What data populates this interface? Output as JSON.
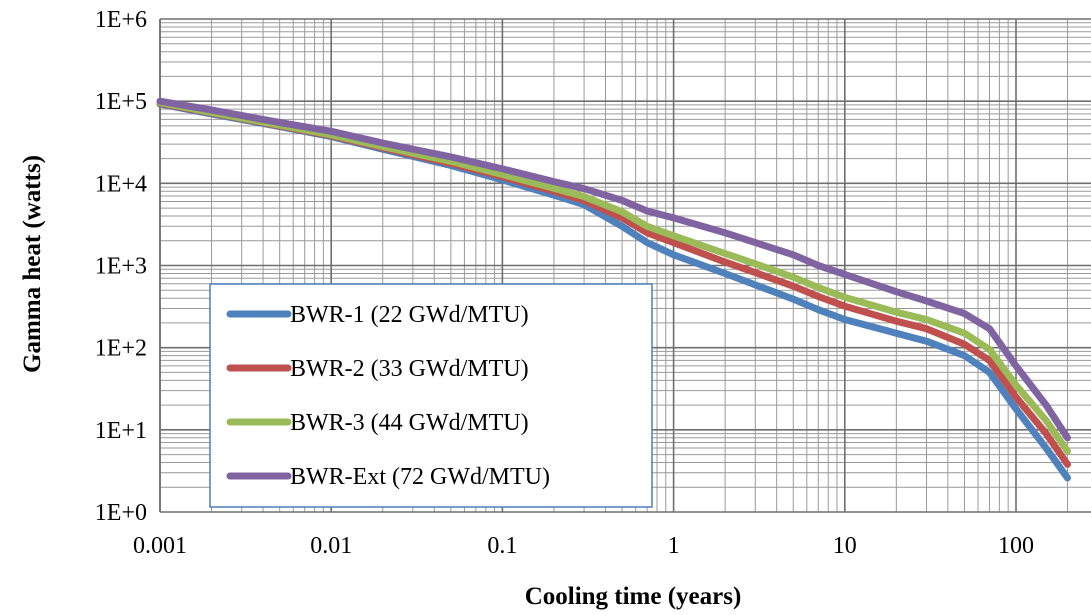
{
  "chart_data": {
    "type": "line",
    "title": "",
    "xlabel": "Cooling time (years)",
    "ylabel": "Gamma heat (watts)",
    "xscale": "log",
    "yscale": "log",
    "xlim": [
      0.001,
      200
    ],
    "ylim": [
      1,
      1000000
    ],
    "x_ticks": [
      "0.001",
      "0.01",
      "0.1",
      "1",
      "10",
      "100"
    ],
    "y_ticks": [
      "1E+0",
      "1E+1",
      "1E+2",
      "1E+3",
      "1E+4",
      "1E+5",
      "1E+6"
    ],
    "grid": true,
    "minor_grid": true,
    "legend_position": "lower-left",
    "series": [
      {
        "name": "BWR-1 (22 GWd/MTU)",
        "color": "#4F81BD",
        "x": [
          0.001,
          0.002,
          0.005,
          0.01,
          0.02,
          0.05,
          0.1,
          0.2,
          0.3,
          0.5,
          0.7,
          1,
          2,
          3,
          5,
          7,
          10,
          20,
          30,
          50,
          70,
          100,
          150,
          200
        ],
        "y": [
          92000,
          70000,
          49000,
          37000,
          26000,
          16500,
          11000,
          7200,
          5500,
          3000,
          1900,
          1350,
          800,
          580,
          390,
          290,
          220,
          150,
          120,
          80,
          50,
          18,
          6,
          2.6
        ]
      },
      {
        "name": "BWR-2 (33 GWd/MTU)",
        "color": "#C0504D",
        "x": [
          0.001,
          0.002,
          0.005,
          0.01,
          0.02,
          0.05,
          0.1,
          0.2,
          0.3,
          0.5,
          0.7,
          1,
          2,
          3,
          5,
          7,
          10,
          20,
          30,
          50,
          70,
          100,
          150,
          200
        ],
        "y": [
          94000,
          72000,
          50000,
          38000,
          27000,
          17500,
          12000,
          8000,
          6200,
          3800,
          2500,
          1900,
          1100,
          820,
          560,
          420,
          320,
          210,
          170,
          110,
          70,
          25,
          9,
          3.8
        ]
      },
      {
        "name": "BWR-3 (44 GWd/MTU)",
        "color": "#9BBB59",
        "x": [
          0.001,
          0.002,
          0.005,
          0.01,
          0.02,
          0.05,
          0.1,
          0.2,
          0.3,
          0.5,
          0.7,
          1,
          2,
          3,
          5,
          7,
          10,
          20,
          30,
          50,
          70,
          100,
          150,
          200
        ],
        "y": [
          96000,
          73000,
          51000,
          39000,
          28000,
          18500,
          12800,
          8700,
          6900,
          4500,
          3000,
          2300,
          1400,
          1050,
          720,
          540,
          410,
          270,
          220,
          150,
          95,
          35,
          13,
          5.5
        ]
      },
      {
        "name": "BWR-Ext (72 GWd/MTU)",
        "color": "#8064A2",
        "x": [
          0.001,
          0.002,
          0.005,
          0.01,
          0.02,
          0.05,
          0.1,
          0.2,
          0.3,
          0.5,
          0.7,
          1,
          2,
          3,
          5,
          7,
          10,
          20,
          30,
          50,
          70,
          100,
          150,
          200
        ],
        "y": [
          100000,
          78000,
          55000,
          43000,
          31000,
          21000,
          15000,
          10500,
          8600,
          6200,
          4600,
          3800,
          2500,
          1900,
          1350,
          1000,
          780,
          480,
          370,
          260,
          170,
          60,
          20,
          8
        ]
      }
    ]
  }
}
